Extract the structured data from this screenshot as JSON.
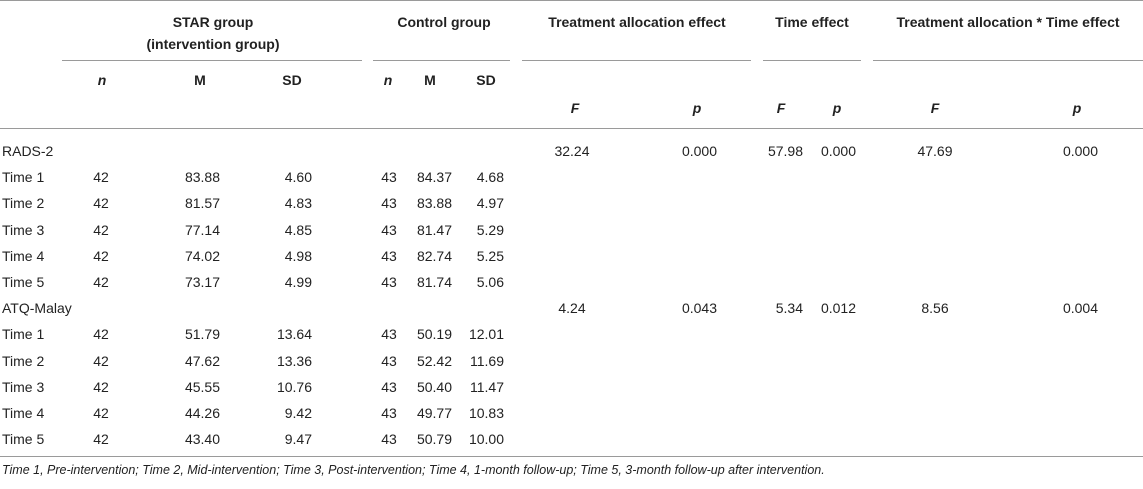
{
  "headers": {
    "star_group_line1": "STAR group",
    "star_group_line2": "(intervention group)",
    "control_group": "Control group",
    "treatment_allocation_effect": "Treatment allocation effect",
    "time_effect": "Time effect",
    "interaction_effect": "Treatment allocation * Time effect",
    "n": "n",
    "m": "M",
    "sd": "SD",
    "f": "F",
    "p": "p"
  },
  "rows": [
    {
      "label": "RADS-2",
      "n1": "",
      "m1": "",
      "sd1": "",
      "n2": "",
      "m2": "",
      "sd2": "",
      "tf": "32.24",
      "tp": "0.000",
      "timef": "57.98",
      "timep": "0.000",
      "if": "47.69",
      "ip": "0.000"
    },
    {
      "label": "Time 1",
      "n1": "42",
      "m1": "83.88",
      "sd1": "4.60",
      "n2": "43",
      "m2": "84.37",
      "sd2": "4.68",
      "tf": "",
      "tp": "",
      "timef": "",
      "timep": "",
      "if": "",
      "ip": ""
    },
    {
      "label": "Time 2",
      "n1": "42",
      "m1": "81.57",
      "sd1": "4.83",
      "n2": "43",
      "m2": "83.88",
      "sd2": "4.97",
      "tf": "",
      "tp": "",
      "timef": "",
      "timep": "",
      "if": "",
      "ip": ""
    },
    {
      "label": "Time 3",
      "n1": "42",
      "m1": "77.14",
      "sd1": "4.85",
      "n2": "43",
      "m2": "81.47",
      "sd2": "5.29",
      "tf": "",
      "tp": "",
      "timef": "",
      "timep": "",
      "if": "",
      "ip": ""
    },
    {
      "label": "Time 4",
      "n1": "42",
      "m1": "74.02",
      "sd1": "4.98",
      "n2": "43",
      "m2": "82.74",
      "sd2": "5.25",
      "tf": "",
      "tp": "",
      "timef": "",
      "timep": "",
      "if": "",
      "ip": ""
    },
    {
      "label": "Time 5",
      "n1": "42",
      "m1": "73.17",
      "sd1": "4.99",
      "n2": "43",
      "m2": "81.74",
      "sd2": "5.06",
      "tf": "",
      "tp": "",
      "timef": "",
      "timep": "",
      "if": "",
      "ip": ""
    },
    {
      "label": "ATQ-Malay",
      "n1": "",
      "m1": "",
      "sd1": "",
      "n2": "",
      "m2": "",
      "sd2": "",
      "tf": "4.24",
      "tp": "0.043",
      "timef": "5.34",
      "timep": "0.012",
      "if": "8.56",
      "ip": "0.004"
    },
    {
      "label": "Time 1",
      "n1": "42",
      "m1": "51.79",
      "sd1": "13.64",
      "n2": "43",
      "m2": "50.19",
      "sd2": "12.01",
      "tf": "",
      "tp": "",
      "timef": "",
      "timep": "",
      "if": "",
      "ip": ""
    },
    {
      "label": "Time 2",
      "n1": "42",
      "m1": "47.62",
      "sd1": "13.36",
      "n2": "43",
      "m2": "52.42",
      "sd2": "11.69",
      "tf": "",
      "tp": "",
      "timef": "",
      "timep": "",
      "if": "",
      "ip": ""
    },
    {
      "label": "Time 3",
      "n1": "42",
      "m1": "45.55",
      "sd1": "10.76",
      "n2": "43",
      "m2": "50.40",
      "sd2": "11.47",
      "tf": "",
      "tp": "",
      "timef": "",
      "timep": "",
      "if": "",
      "ip": ""
    },
    {
      "label": "Time 4",
      "n1": "42",
      "m1": "44.26",
      "sd1": "9.42",
      "n2": "43",
      "m2": "49.77",
      "sd2": "10.83",
      "tf": "",
      "tp": "",
      "timef": "",
      "timep": "",
      "if": "",
      "ip": ""
    },
    {
      "label": "Time 5",
      "n1": "42",
      "m1": "43.40",
      "sd1": "9.47",
      "n2": "43",
      "m2": "50.79",
      "sd2": "10.00",
      "tf": "",
      "tp": "",
      "timef": "",
      "timep": "",
      "if": "",
      "ip": ""
    }
  ],
  "footnote": "Time 1, Pre-intervention; Time 2, Mid-intervention; Time 3, Post-intervention; Time 4, 1-month follow-up; Time 5, 3-month follow-up after intervention."
}
